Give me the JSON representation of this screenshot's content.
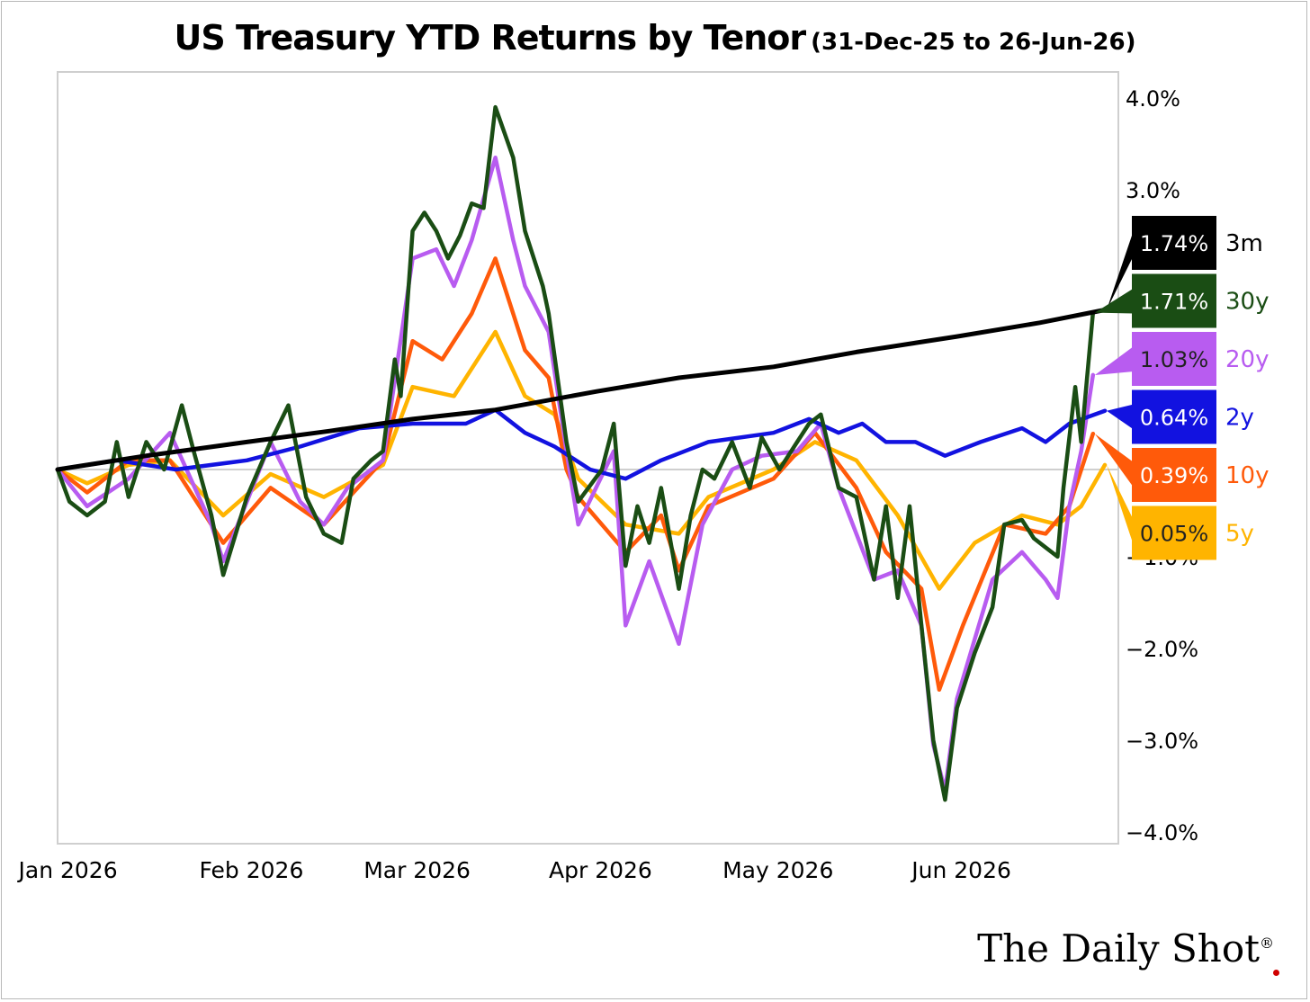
{
  "chart_data": {
    "type": "line",
    "title": "US Treasury YTD Returns by Tenor",
    "subtitle": "(31-Dec-25 to 26-Jun-26)",
    "x_ticks": [
      "Jan 2026",
      "Feb 2026",
      "Mar 2026",
      "Apr 2026",
      "May 2026",
      "Jun 2026"
    ],
    "y_ticks": [
      "4.0%",
      "3.0%",
      "−1.0%",
      "−2.0%",
      "−3.0%",
      "−4.0%"
    ],
    "y_tick_values": [
      4.0,
      3.0,
      -1.0,
      -2.0,
      -3.0,
      -4.0
    ],
    "ylim": [
      -4.0,
      4.2
    ],
    "xlim": [
      "2025-12-31",
      "2026-06-26"
    ],
    "grid": "zero line only",
    "y_axis_side": "right",
    "series": [
      {
        "name": "3m",
        "value_label": "1.74%",
        "color": "#000000",
        "label_text_color": "#ffffff",
        "points": [
          [
            "2025-12-31",
            0.0
          ],
          [
            "2026-01-15",
            0.15
          ],
          [
            "2026-02-01",
            0.3
          ],
          [
            "2026-02-15",
            0.42
          ],
          [
            "2026-03-01",
            0.55
          ],
          [
            "2026-03-15",
            0.65
          ],
          [
            "2026-04-01",
            0.85
          ],
          [
            "2026-04-15",
            1.0
          ],
          [
            "2026-05-01",
            1.12
          ],
          [
            "2026-05-15",
            1.28
          ],
          [
            "2026-06-01",
            1.45
          ],
          [
            "2026-06-15",
            1.6
          ],
          [
            "2026-06-26",
            1.74
          ]
        ]
      },
      {
        "name": "30y",
        "value_label": "1.71%",
        "color": "#1a4d14",
        "label_text_color": "#ffffff",
        "points": [
          [
            "2025-12-31",
            0.0
          ],
          [
            "2026-01-02",
            -0.35
          ],
          [
            "2026-01-05",
            -0.5
          ],
          [
            "2026-01-08",
            -0.35
          ],
          [
            "2026-01-10",
            0.3
          ],
          [
            "2026-01-12",
            -0.3
          ],
          [
            "2026-01-15",
            0.3
          ],
          [
            "2026-01-18",
            0.0
          ],
          [
            "2026-01-21",
            0.7
          ],
          [
            "2026-01-23",
            0.2
          ],
          [
            "2026-01-26",
            -0.5
          ],
          [
            "2026-01-28",
            -1.15
          ],
          [
            "2026-02-01",
            -0.3
          ],
          [
            "2026-02-05",
            0.3
          ],
          [
            "2026-02-08",
            0.7
          ],
          [
            "2026-02-11",
            -0.3
          ],
          [
            "2026-02-14",
            -0.7
          ],
          [
            "2026-02-17",
            -0.8
          ],
          [
            "2026-02-19",
            -0.1
          ],
          [
            "2026-02-22",
            0.1
          ],
          [
            "2026-02-24",
            0.2
          ],
          [
            "2026-02-26",
            1.2
          ],
          [
            "2026-02-27",
            0.8
          ],
          [
            "2026-03-01",
            2.6
          ],
          [
            "2026-03-03",
            2.8
          ],
          [
            "2026-03-05",
            2.6
          ],
          [
            "2026-03-07",
            2.3
          ],
          [
            "2026-03-09",
            2.55
          ],
          [
            "2026-03-11",
            2.9
          ],
          [
            "2026-03-13",
            2.85
          ],
          [
            "2026-03-15",
            3.95
          ],
          [
            "2026-03-18",
            3.4
          ],
          [
            "2026-03-20",
            2.6
          ],
          [
            "2026-03-23",
            2.0
          ],
          [
            "2026-03-24",
            1.7
          ],
          [
            "2026-03-27",
            0.3
          ],
          [
            "2026-03-29",
            -0.35
          ],
          [
            "2026-04-02",
            0.0
          ],
          [
            "2026-04-04",
            0.5
          ],
          [
            "2026-04-06",
            -1.05
          ],
          [
            "2026-04-08",
            -0.4
          ],
          [
            "2026-04-10",
            -0.8
          ],
          [
            "2026-04-12",
            -0.2
          ],
          [
            "2026-04-15",
            -1.3
          ],
          [
            "2026-04-17",
            -0.5
          ],
          [
            "2026-04-19",
            0.0
          ],
          [
            "2026-04-21",
            -0.1
          ],
          [
            "2026-04-24",
            0.3
          ],
          [
            "2026-04-27",
            -0.2
          ],
          [
            "2026-04-29",
            0.35
          ],
          [
            "2026-05-02",
            0.0
          ],
          [
            "2026-05-05",
            0.3
          ],
          [
            "2026-05-07",
            0.5
          ],
          [
            "2026-05-09",
            0.6
          ],
          [
            "2026-05-12",
            -0.2
          ],
          [
            "2026-05-15",
            -0.3
          ],
          [
            "2026-05-18",
            -1.2
          ],
          [
            "2026-05-20",
            -0.4
          ],
          [
            "2026-05-22",
            -1.4
          ],
          [
            "2026-05-24",
            -0.4
          ],
          [
            "2026-05-26",
            -1.7
          ],
          [
            "2026-05-28",
            -2.95
          ],
          [
            "2026-05-30",
            -3.6
          ],
          [
            "2026-06-01",
            -2.6
          ],
          [
            "2026-06-04",
            -2.0
          ],
          [
            "2026-06-07",
            -1.5
          ],
          [
            "2026-06-09",
            -0.6
          ],
          [
            "2026-06-12",
            -0.55
          ],
          [
            "2026-06-14",
            -0.75
          ],
          [
            "2026-06-16",
            -0.85
          ],
          [
            "2026-06-18",
            -0.95
          ],
          [
            "2026-06-19",
            -0.2
          ],
          [
            "2026-06-21",
            0.9
          ],
          [
            "2026-06-22",
            0.3
          ],
          [
            "2026-06-24",
            1.71
          ]
        ]
      },
      {
        "name": "20y",
        "value_label": "1.03%",
        "color": "#b85cf0",
        "label_text_color": "#222222",
        "points": [
          [
            "2025-12-31",
            0.0
          ],
          [
            "2026-01-05",
            -0.4
          ],
          [
            "2026-01-12",
            -0.1
          ],
          [
            "2026-01-19",
            0.4
          ],
          [
            "2026-01-26",
            -0.6
          ],
          [
            "2026-01-28",
            -1.0
          ],
          [
            "2026-02-05",
            0.3
          ],
          [
            "2026-02-10",
            -0.35
          ],
          [
            "2026-02-14",
            -0.6
          ],
          [
            "2026-02-18",
            -0.2
          ],
          [
            "2026-02-24",
            0.1
          ],
          [
            "2026-03-01",
            2.3
          ],
          [
            "2026-03-05",
            2.4
          ],
          [
            "2026-03-08",
            2.0
          ],
          [
            "2026-03-11",
            2.5
          ],
          [
            "2026-03-15",
            3.4
          ],
          [
            "2026-03-18",
            2.5
          ],
          [
            "2026-03-20",
            2.0
          ],
          [
            "2026-03-24",
            1.5
          ],
          [
            "2026-03-27",
            0.2
          ],
          [
            "2026-03-29",
            -0.6
          ],
          [
            "2026-04-04",
            0.2
          ],
          [
            "2026-04-06",
            -1.7
          ],
          [
            "2026-04-10",
            -1.0
          ],
          [
            "2026-04-15",
            -1.9
          ],
          [
            "2026-04-19",
            -0.6
          ],
          [
            "2026-04-24",
            0.0
          ],
          [
            "2026-04-29",
            0.15
          ],
          [
            "2026-05-05",
            0.2
          ],
          [
            "2026-05-09",
            0.5
          ],
          [
            "2026-05-12",
            -0.2
          ],
          [
            "2026-05-18",
            -1.2
          ],
          [
            "2026-05-22",
            -1.1
          ],
          [
            "2026-05-26",
            -1.7
          ],
          [
            "2026-05-28",
            -3.0
          ],
          [
            "2026-05-30",
            -3.5
          ],
          [
            "2026-06-01",
            -2.5
          ],
          [
            "2026-06-07",
            -1.2
          ],
          [
            "2026-06-12",
            -0.9
          ],
          [
            "2026-06-16",
            -1.2
          ],
          [
            "2026-06-18",
            -1.4
          ],
          [
            "2026-06-20",
            -0.4
          ],
          [
            "2026-06-22",
            0.2
          ],
          [
            "2026-06-24",
            1.03
          ]
        ]
      },
      {
        "name": "2y",
        "value_label": "0.64%",
        "color": "#1212e0",
        "label_text_color": "#ffffff",
        "points": [
          [
            "2025-12-31",
            0.0
          ],
          [
            "2026-01-10",
            0.1
          ],
          [
            "2026-01-20",
            0.0
          ],
          [
            "2026-02-01",
            0.1
          ],
          [
            "2026-02-10",
            0.25
          ],
          [
            "2026-02-20",
            0.45
          ],
          [
            "2026-03-01",
            0.5
          ],
          [
            "2026-03-10",
            0.5
          ],
          [
            "2026-03-15",
            0.65
          ],
          [
            "2026-03-20",
            0.4
          ],
          [
            "2026-03-25",
            0.25
          ],
          [
            "2026-03-31",
            0.0
          ],
          [
            "2026-04-06",
            -0.1
          ],
          [
            "2026-04-12",
            0.1
          ],
          [
            "2026-04-20",
            0.3
          ],
          [
            "2026-05-01",
            0.4
          ],
          [
            "2026-05-07",
            0.55
          ],
          [
            "2026-05-12",
            0.4
          ],
          [
            "2026-05-16",
            0.5
          ],
          [
            "2026-05-20",
            0.3
          ],
          [
            "2026-05-25",
            0.3
          ],
          [
            "2026-05-30",
            0.15
          ],
          [
            "2026-06-05",
            0.3
          ],
          [
            "2026-06-12",
            0.45
          ],
          [
            "2026-06-16",
            0.3
          ],
          [
            "2026-06-20",
            0.5
          ],
          [
            "2026-06-26",
            0.64
          ]
        ]
      },
      {
        "name": "10y",
        "value_label": "0.39%",
        "color": "#ff5a0a",
        "label_text_color": "#ffffff",
        "points": [
          [
            "2025-12-31",
            0.0
          ],
          [
            "2026-01-05",
            -0.25
          ],
          [
            "2026-01-12",
            0.1
          ],
          [
            "2026-01-19",
            0.1
          ],
          [
            "2026-01-28",
            -0.8
          ],
          [
            "2026-02-05",
            -0.2
          ],
          [
            "2026-02-14",
            -0.6
          ],
          [
            "2026-02-24",
            0.1
          ],
          [
            "2026-03-01",
            1.4
          ],
          [
            "2026-03-06",
            1.2
          ],
          [
            "2026-03-11",
            1.7
          ],
          [
            "2026-03-15",
            2.3
          ],
          [
            "2026-03-20",
            1.3
          ],
          [
            "2026-03-24",
            1.0
          ],
          [
            "2026-03-27",
            0.0
          ],
          [
            "2026-03-29",
            -0.3
          ],
          [
            "2026-04-06",
            -0.9
          ],
          [
            "2026-04-12",
            -0.5
          ],
          [
            "2026-04-15",
            -1.1
          ],
          [
            "2026-04-20",
            -0.4
          ],
          [
            "2026-05-01",
            -0.1
          ],
          [
            "2026-05-08",
            0.4
          ],
          [
            "2026-05-15",
            -0.2
          ],
          [
            "2026-05-20",
            -0.9
          ],
          [
            "2026-05-26",
            -1.3
          ],
          [
            "2026-05-29",
            -2.4
          ],
          [
            "2026-06-02",
            -1.7
          ],
          [
            "2026-06-09",
            -0.6
          ],
          [
            "2026-06-16",
            -0.7
          ],
          [
            "2026-06-20",
            -0.4
          ],
          [
            "2026-06-24",
            0.39
          ]
        ]
      },
      {
        "name": "5y",
        "value_label": "0.05%",
        "color": "#ffb400",
        "label_text_color": "#222222",
        "points": [
          [
            "2025-12-31",
            0.0
          ],
          [
            "2026-01-05",
            -0.15
          ],
          [
            "2026-01-12",
            0.05
          ],
          [
            "2026-01-19",
            0.1
          ],
          [
            "2026-01-28",
            -0.5
          ],
          [
            "2026-02-05",
            -0.05
          ],
          [
            "2026-02-14",
            -0.3
          ],
          [
            "2026-02-24",
            0.05
          ],
          [
            "2026-03-01",
            0.9
          ],
          [
            "2026-03-08",
            0.8
          ],
          [
            "2026-03-15",
            1.5
          ],
          [
            "2026-03-20",
            0.8
          ],
          [
            "2026-03-25",
            0.6
          ],
          [
            "2026-03-29",
            -0.1
          ],
          [
            "2026-04-06",
            -0.6
          ],
          [
            "2026-04-15",
            -0.7
          ],
          [
            "2026-04-20",
            -0.3
          ],
          [
            "2026-05-01",
            0.0
          ],
          [
            "2026-05-08",
            0.3
          ],
          [
            "2026-05-15",
            0.1
          ],
          [
            "2026-05-22",
            -0.5
          ],
          [
            "2026-05-29",
            -1.3
          ],
          [
            "2026-06-04",
            -0.8
          ],
          [
            "2026-06-12",
            -0.5
          ],
          [
            "2026-06-18",
            -0.6
          ],
          [
            "2026-06-22",
            -0.4
          ],
          [
            "2026-06-26",
            0.05
          ]
        ]
      }
    ]
  },
  "brand": {
    "text": "The Daily Shot",
    "mark": "®"
  }
}
